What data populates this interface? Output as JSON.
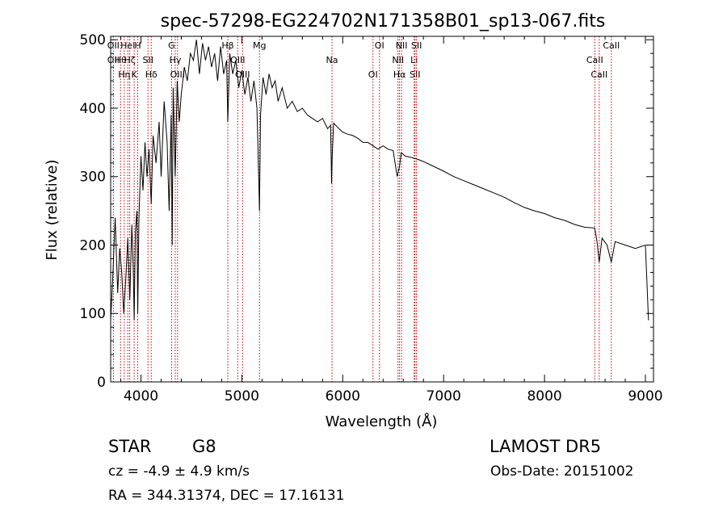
{
  "chart_data": {
    "type": "line",
    "title": "spec-57298-EG224702N171358B01_sp13-067.fits",
    "xlabel": "Wavelength (Å)",
    "ylabel": "Flux (relative)",
    "xlim": [
      3700,
      9080
    ],
    "ylim": [
      0,
      505
    ],
    "xticks": [
      4000,
      5000,
      6000,
      7000,
      8000,
      9000
    ],
    "xtick_labels": [
      "4000",
      "5000",
      "6000",
      "7000",
      "8000",
      "9000"
    ],
    "yticks": [
      0,
      100,
      200,
      300,
      400,
      500
    ],
    "ytick_labels": [
      "0",
      "100",
      "200",
      "300",
      "400",
      "500"
    ],
    "grid": false,
    "series": [
      {
        "x": [
          3700,
          3720,
          3745,
          3770,
          3790,
          3810,
          3830,
          3850,
          3870,
          3890,
          3910,
          3925,
          3933,
          3945,
          3960,
          3968,
          3980,
          4000,
          4020,
          4040,
          4060,
          4080,
          4102,
          4120,
          4150,
          4180,
          4200,
          4230,
          4260,
          4280,
          4300,
          4310,
          4320,
          4340,
          4360,
          4380,
          4400,
          4430,
          4460,
          4490,
          4520,
          4550,
          4580,
          4610,
          4640,
          4670,
          4700,
          4730,
          4760,
          4790,
          4820,
          4850,
          4861,
          4880,
          4910,
          4940,
          4970,
          5000,
          5030,
          5060,
          5090,
          5120,
          5150,
          5167,
          5175,
          5185,
          5210,
          5240,
          5270,
          5300,
          5330,
          5360,
          5400,
          5450,
          5500,
          5550,
          5600,
          5650,
          5700,
          5750,
          5800,
          5850,
          5880,
          5890,
          5896,
          5910,
          5950,
          6000,
          6050,
          6100,
          6150,
          6200,
          6250,
          6300,
          6350,
          6400,
          6450,
          6500,
          6540,
          6563,
          6580,
          6620,
          6680,
          6750,
          6800,
          6900,
          7000,
          7100,
          7200,
          7300,
          7400,
          7500,
          7600,
          7700,
          7800,
          7900,
          8000,
          8100,
          8200,
          8300,
          8400,
          8498,
          8520,
          8542,
          8570,
          8620,
          8662,
          8700,
          8800,
          8900,
          9000,
          9030
        ],
        "y": [
          90,
          150,
          240,
          130,
          195,
          160,
          100,
          150,
          210,
          120,
          230,
          160,
          90,
          220,
          250,
          100,
          240,
          330,
          280,
          350,
          300,
          340,
          260,
          360,
          320,
          380,
          300,
          410,
          350,
          250,
          390,
          200,
          430,
          300,
          440,
          380,
          420,
          460,
          440,
          480,
          470,
          500,
          450,
          495,
          470,
          490,
          460,
          480,
          440,
          490,
          450,
          470,
          380,
          480,
          450,
          470,
          430,
          455,
          420,
          445,
          410,
          440,
          400,
          300,
          250,
          390,
          445,
          420,
          450,
          430,
          440,
          410,
          430,
          400,
          410,
          395,
          400,
          390,
          385,
          380,
          385,
          370,
          375,
          290,
          330,
          378,
          372,
          365,
          362,
          360,
          356,
          350,
          350,
          345,
          340,
          345,
          340,
          338,
          300,
          315,
          335,
          330,
          328,
          325,
          322,
          315,
          308,
          300,
          294,
          288,
          282,
          276,
          270,
          262,
          255,
          250,
          246,
          240,
          236,
          230,
          226,
          225,
          205,
          175,
          210,
          200,
          175,
          205,
          200,
          195,
          200,
          90
        ]
      }
    ],
    "lines": [
      {
        "x": 3727,
        "labels": [
          "OII",
          "OII"
        ]
      },
      {
        "x": 3798,
        "labels": [
          "Hθ"
        ]
      },
      {
        "x": 3835,
        "labels": [
          "Hη"
        ]
      },
      {
        "x": 3870,
        "labels": [
          "HeI"
        ]
      },
      {
        "x": 3889,
        "labels": [
          "Hζ"
        ]
      },
      {
        "x": 3933,
        "labels": [
          "K"
        ]
      },
      {
        "x": 3968,
        "labels": [
          "H"
        ]
      },
      {
        "x": 4070,
        "labels": [
          "SII"
        ]
      },
      {
        "x": 4102,
        "labels": [
          "Hδ"
        ]
      },
      {
        "x": 4304,
        "labels": [
          "G"
        ]
      },
      {
        "x": 4340,
        "labels": [
          "Hγ"
        ]
      },
      {
        "x": 4363,
        "labels": [
          "OIII"
        ]
      },
      {
        "x": 4861,
        "labels": [
          "Hβ"
        ]
      },
      {
        "x": 4959,
        "labels": [
          "OIII"
        ]
      },
      {
        "x": 5007,
        "labels": [
          "OIII"
        ]
      },
      {
        "x": 5175,
        "labels": [
          "Mg"
        ]
      },
      {
        "x": 5894,
        "labels": [
          "Na"
        ]
      },
      {
        "x": 6300,
        "labels": [
          "OI"
        ]
      },
      {
        "x": 6364,
        "labels": [
          "OI"
        ]
      },
      {
        "x": 6548,
        "labels": [
          "NII"
        ]
      },
      {
        "x": 6563,
        "labels": [
          "Hα"
        ]
      },
      {
        "x": 6583,
        "labels": [
          "NII"
        ]
      },
      {
        "x": 6708,
        "labels": [
          "Li"
        ]
      },
      {
        "x": 6716,
        "labels": [
          "SII"
        ]
      },
      {
        "x": 6731,
        "labels": [
          "SII"
        ]
      },
      {
        "x": 8498,
        "labels": [
          "CaII"
        ]
      },
      {
        "x": 8542,
        "labels": [
          "CaII"
        ]
      },
      {
        "x": 8662,
        "labels": [
          "CaII"
        ]
      }
    ],
    "line_color": "#000000",
    "marker_color": "#c00000"
  },
  "info": {
    "object_class": "STAR",
    "subclass": "G8",
    "survey": "LAMOST DR5",
    "cz": "cz = -4.9 ± 4.9 km/s",
    "obs_date": "Obs-Date: 20151002",
    "coords": "RA = 344.31374, DEC =  17.16131"
  }
}
